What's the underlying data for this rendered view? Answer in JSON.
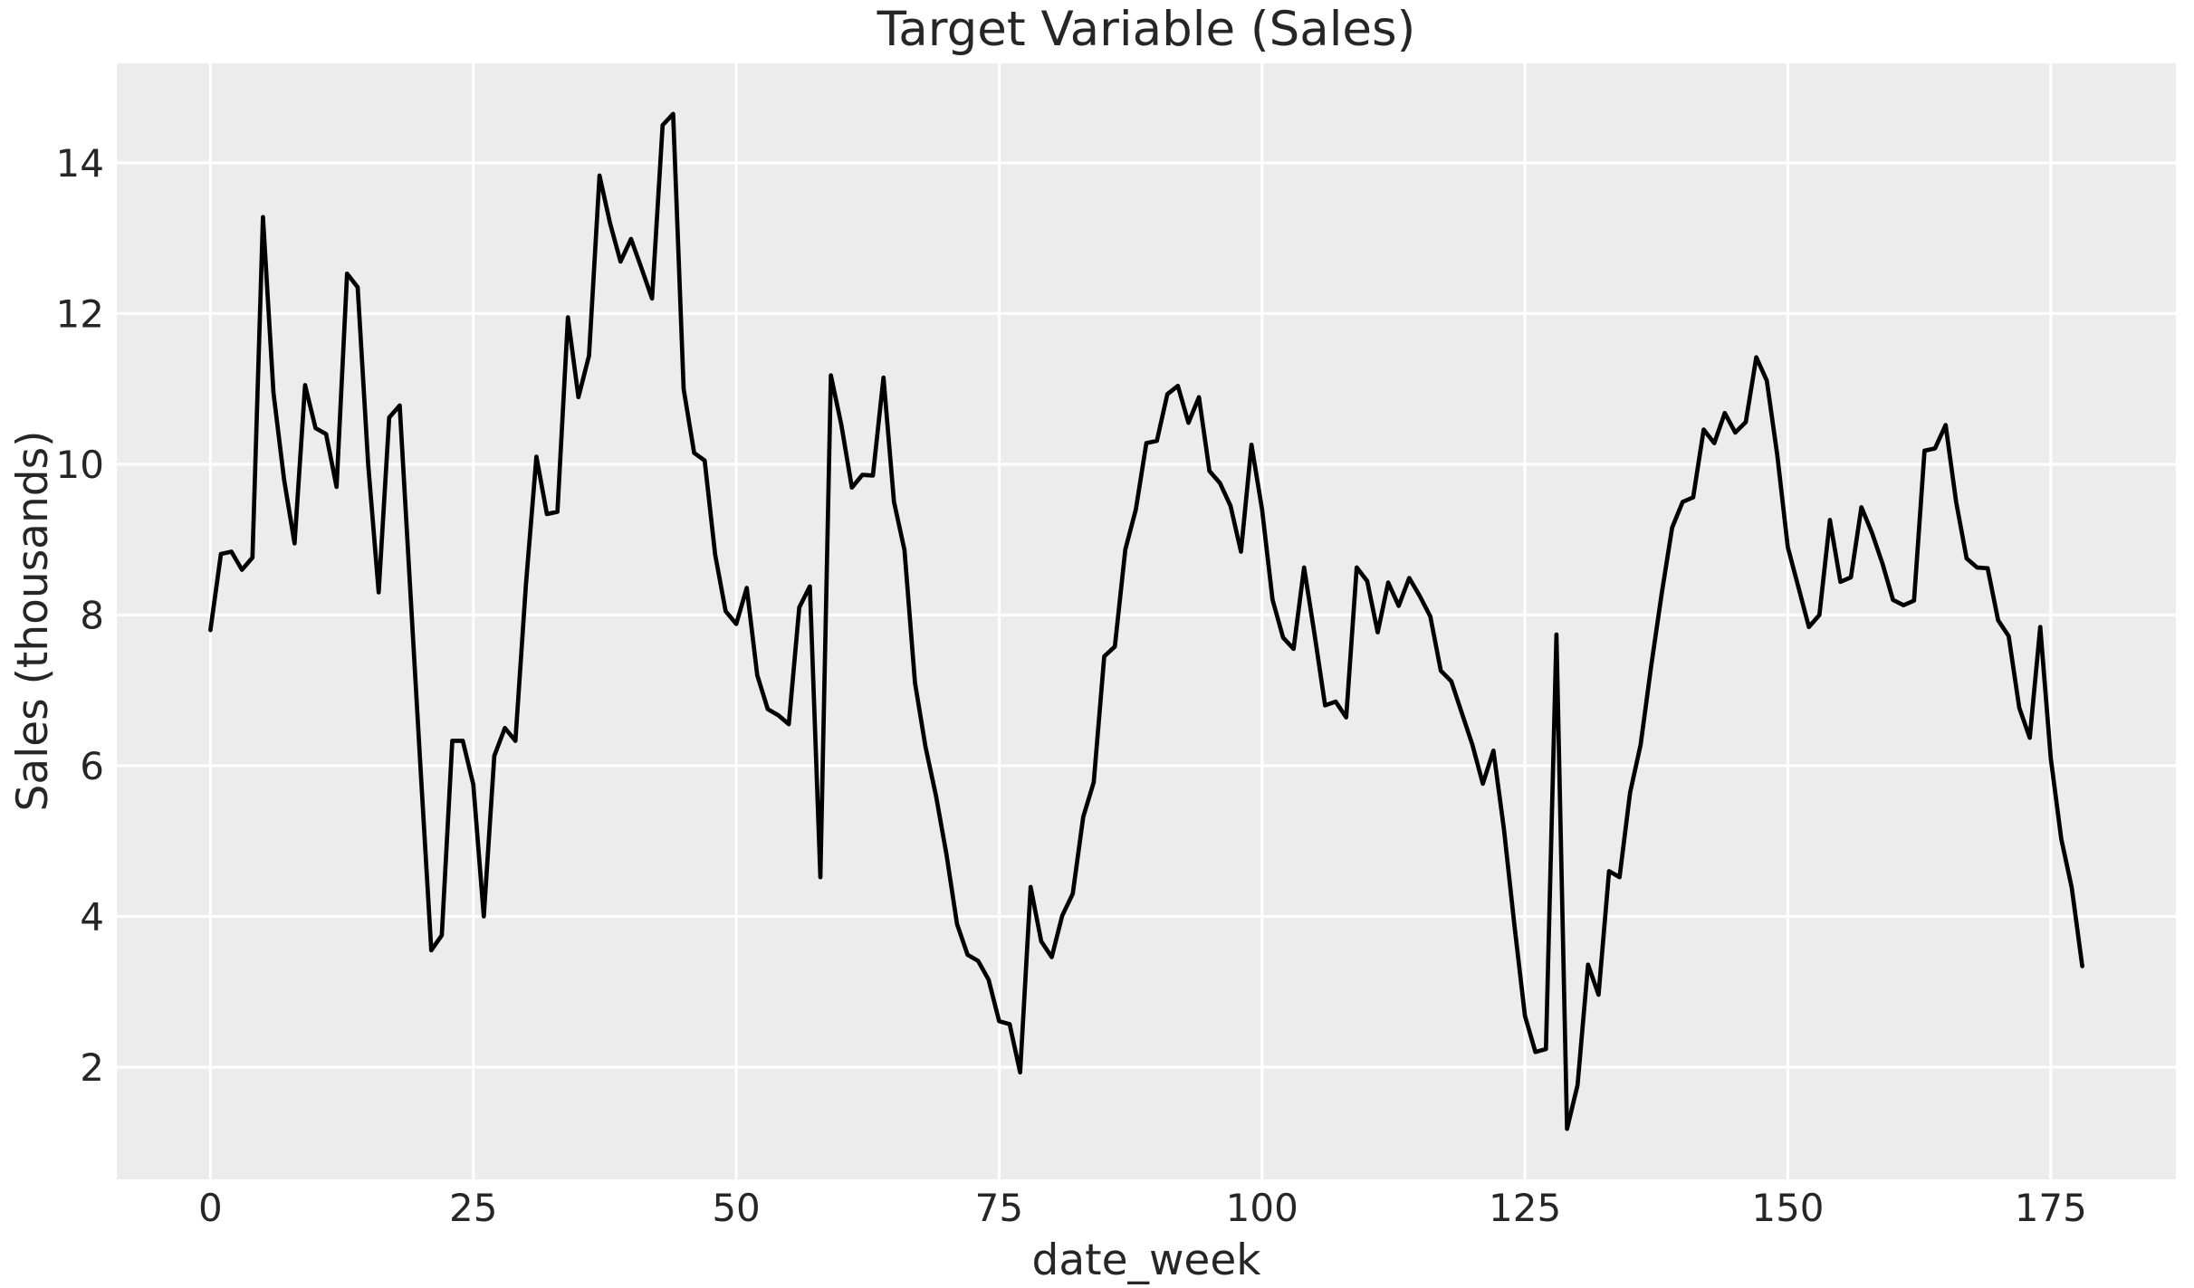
{
  "chart_data": {
    "type": "line",
    "title": "Target Variable (Sales)",
    "xlabel": "date_week",
    "ylabel": "Sales (thousands)",
    "x_start": 0,
    "x_step": 1,
    "values": [
      7.8,
      8.81,
      8.84,
      8.6,
      8.76,
      13.28,
      10.95,
      9.8,
      8.95,
      11.05,
      10.48,
      10.4,
      9.7,
      12.53,
      12.35,
      10.0,
      8.3,
      10.62,
      10.78,
      8.35,
      5.93,
      3.55,
      3.75,
      6.33,
      6.33,
      5.75,
      4.0,
      6.13,
      6.5,
      6.33,
      8.4,
      10.1,
      9.34,
      9.37,
      11.95,
      10.89,
      11.44,
      13.83,
      13.2,
      12.69,
      12.99,
      12.6,
      12.2,
      14.5,
      14.65,
      11.0,
      10.15,
      10.05,
      8.8,
      8.05,
      7.88,
      8.36,
      7.2,
      6.75,
      6.67,
      6.55,
      8.1,
      8.38,
      4.52,
      11.18,
      10.52,
      9.69,
      9.86,
      9.85,
      11.15,
      9.5,
      8.86,
      7.1,
      6.25,
      5.6,
      4.82,
      3.9,
      3.49,
      3.41,
      3.16,
      2.61,
      2.57,
      1.93,
      4.39,
      3.67,
      3.46,
      4.01,
      4.3,
      5.32,
      5.78,
      7.45,
      7.58,
      8.87,
      9.4,
      10.28,
      10.31,
      10.93,
      11.04,
      10.55,
      10.89,
      9.91,
      9.75,
      9.45,
      8.84,
      10.26,
      9.4,
      8.2,
      7.7,
      7.55,
      8.63,
      7.74,
      6.8,
      6.85,
      6.64,
      8.63,
      8.45,
      7.77,
      8.43,
      8.12,
      8.49,
      8.25,
      7.98,
      7.26,
      7.12,
      6.7,
      6.28,
      5.76,
      6.2,
      5.16,
      3.88,
      2.68,
      2.2,
      2.24,
      7.74,
      1.18,
      1.76,
      3.36,
      2.96,
      4.6,
      4.52,
      5.64,
      6.28,
      7.32,
      8.28,
      9.16,
      9.5,
      9.56,
      10.46,
      10.28,
      10.68,
      10.42,
      10.56,
      11.42,
      11.11,
      10.12,
      8.9,
      8.37,
      7.84,
      8.0,
      9.26,
      8.44,
      8.5,
      9.43,
      9.09,
      8.68,
      8.2,
      8.13,
      8.19,
      10.18,
      10.21,
      10.52,
      9.5,
      8.75,
      8.63,
      8.62,
      7.93,
      7.72,
      6.77,
      6.37,
      7.84,
      6.1,
      5.03,
      4.38,
      3.34
    ],
    "xticks": [
      0,
      25,
      50,
      75,
      100,
      125,
      150,
      175
    ],
    "yticks": [
      2,
      4,
      6,
      8,
      10,
      12,
      14
    ],
    "xlim": [
      -8.9,
      186.9
    ],
    "ylim": [
      0.51,
      15.32
    ],
    "grid": true,
    "legend": "none",
    "colors": {
      "plot_background": "#ececec",
      "figure_background": "#ffffff",
      "gridline": "#ffffff",
      "line": "#000000",
      "text": "#262626"
    }
  }
}
